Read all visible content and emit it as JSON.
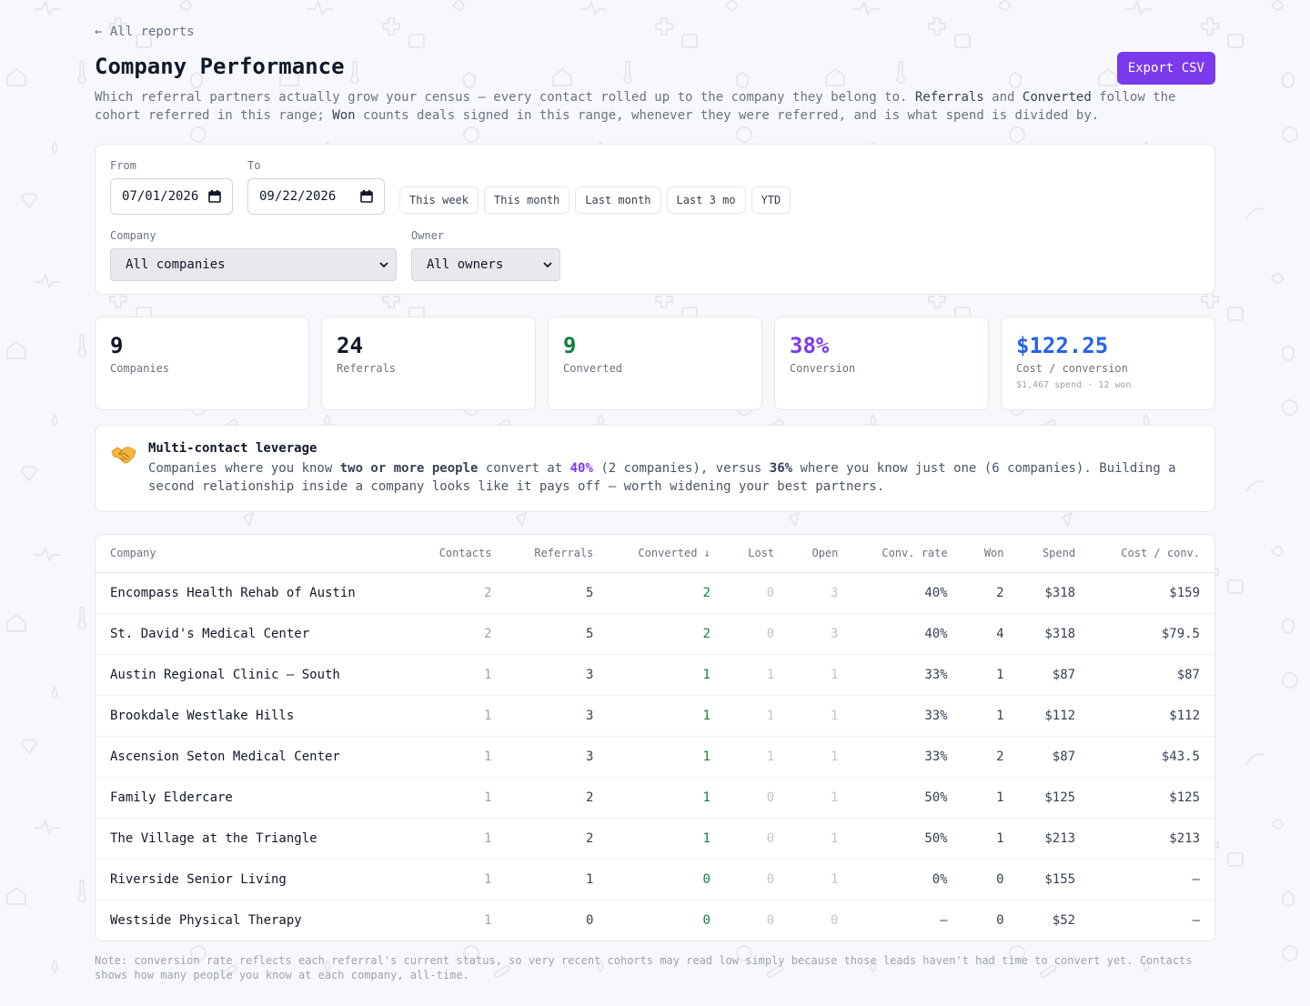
{
  "nav": {
    "back_label": "← All reports"
  },
  "header": {
    "title": "Company Performance",
    "export_label": "Export CSV",
    "subtitle_parts": [
      "Which referral partners actually grow your census — every contact rolled up to the company they belong to. ",
      "Referrals",
      " and ",
      "Converted",
      " follow the cohort referred in this range; ",
      "Won",
      " counts deals signed in this range, whenever they were referred, and is what spend is divided by."
    ]
  },
  "filters": {
    "from_label": "From",
    "from_value": "07/01/2026",
    "to_label": "To",
    "to_value": "09/22/2026",
    "presets": [
      "This week",
      "This month",
      "Last month",
      "Last 3 mo",
      "YTD"
    ],
    "company_label": "Company",
    "company_value": "All companies",
    "owner_label": "Owner",
    "owner_value": "All owners"
  },
  "stats": [
    {
      "value": "9",
      "label": "Companies",
      "sub": "",
      "color": "#111827"
    },
    {
      "value": "24",
      "label": "Referrals",
      "sub": "",
      "color": "#111827"
    },
    {
      "value": "9",
      "label": "Converted",
      "sub": "",
      "color": "#15803d"
    },
    {
      "value": "38%",
      "label": "Conversion",
      "sub": "",
      "color": "#7c3aed"
    },
    {
      "value": "$122.25",
      "label": "Cost / conversion",
      "sub": "$1,467 spend · 12 won",
      "color": "#2563eb"
    }
  ],
  "insight": {
    "icon": "handshake-icon",
    "title": "Multi-contact leverage",
    "t1": "Companies where you know ",
    "b1": "two or more people",
    "t2": " convert at ",
    "p1": "40%",
    "t3": " (2 companies), versus ",
    "b2": "36%",
    "t4": " where you know just one (6 companies). Building a second relationship inside a company looks like it pays off — worth widening your best partners."
  },
  "table": {
    "headers": [
      "Company",
      "Contacts",
      "Referrals",
      "Converted ↓",
      "Lost",
      "Open",
      "Conv. rate",
      "Won",
      "Spend",
      "Cost / conv."
    ],
    "rows": [
      [
        "Encompass Health Rehab of Austin",
        "2",
        "5",
        "2",
        "0",
        "3",
        "40%",
        "2",
        "$318",
        "$159"
      ],
      [
        "St. David's Medical Center",
        "2",
        "5",
        "2",
        "0",
        "3",
        "40%",
        "4",
        "$318",
        "$79.5"
      ],
      [
        "Austin Regional Clinic – South",
        "1",
        "3",
        "1",
        "1",
        "1",
        "33%",
        "1",
        "$87",
        "$87"
      ],
      [
        "Brookdale Westlake Hills",
        "1",
        "3",
        "1",
        "1",
        "1",
        "33%",
        "1",
        "$112",
        "$112"
      ],
      [
        "Ascension Seton Medical Center",
        "1",
        "3",
        "1",
        "1",
        "1",
        "33%",
        "2",
        "$87",
        "$43.5"
      ],
      [
        "Family Eldercare",
        "1",
        "2",
        "1",
        "0",
        "1",
        "50%",
        "1",
        "$125",
        "$125"
      ],
      [
        "The Village at the Triangle",
        "1",
        "2",
        "1",
        "0",
        "1",
        "50%",
        "1",
        "$213",
        "$213"
      ],
      [
        "Riverside Senior Living",
        "1",
        "1",
        "0",
        "0",
        "1",
        "0%",
        "0",
        "$155",
        "—"
      ],
      [
        "Westside Physical Therapy",
        "1",
        "0",
        "0",
        "0",
        "0",
        "—",
        "0",
        "$52",
        "—"
      ]
    ]
  },
  "note": "Note: conversion rate reflects each referral's current status, so very recent cohorts may read low simply because those leads haven't had time to convert yet. Contacts shows how many people you know at each company, all-time."
}
